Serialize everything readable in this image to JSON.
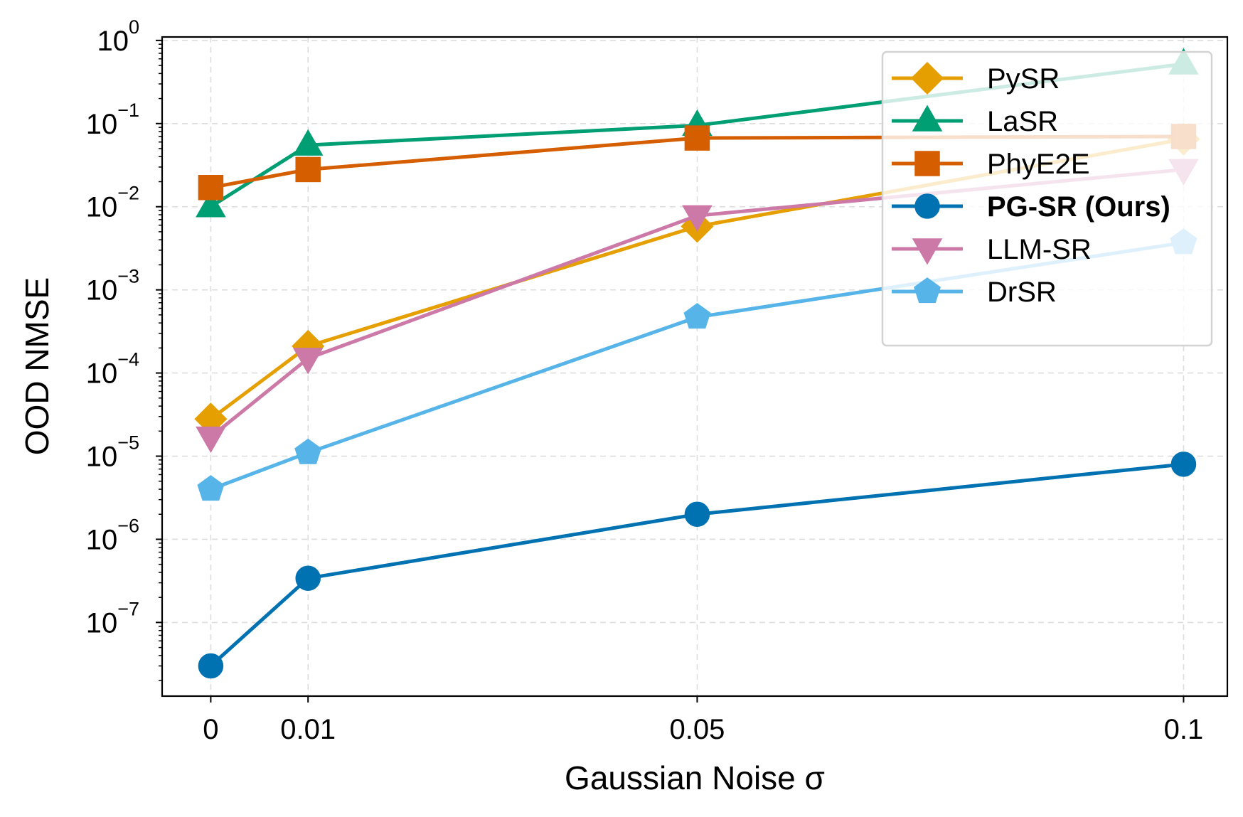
{
  "chart_data": {
    "type": "line",
    "title": "",
    "xlabel": "Gaussian Noise σ",
    "ylabel": "OOD NMSE",
    "yscale": "log",
    "ylim": [
      1.3e-08,
      1.1
    ],
    "grid": true,
    "legend_position": "top-right",
    "x": [
      0,
      0.01,
      0.05,
      0.1
    ],
    "x_tick_labels": [
      "0",
      "0.01",
      "0.05",
      "0.1"
    ],
    "y_tick_exponents": [
      -7,
      -6,
      -5,
      -4,
      -3,
      -2,
      -1,
      0
    ],
    "y_tick_base": "10",
    "series": [
      {
        "name": "PySR",
        "color": "#E69F00",
        "marker": "diamond",
        "bold": false,
        "values": [
          2.8e-05,
          0.00021,
          0.0058,
          0.065
        ]
      },
      {
        "name": "LaSR",
        "color": "#009E73",
        "marker": "triangle-up",
        "bold": false,
        "values": [
          0.01,
          0.055,
          0.095,
          0.52
        ]
      },
      {
        "name": "PhyE2E",
        "color": "#D55E00",
        "marker": "square",
        "bold": false,
        "values": [
          0.017,
          0.028,
          0.067,
          0.07
        ]
      },
      {
        "name": "PG-SR (Ours)",
        "color": "#0072B2",
        "marker": "circle",
        "bold": true,
        "values": [
          3e-08,
          3.4e-07,
          2e-06,
          8e-06
        ]
      },
      {
        "name": "LLM-SR",
        "color": "#CC79A7",
        "marker": "triangle-down",
        "bold": false,
        "values": [
          1.7e-05,
          0.00015,
          0.0078,
          0.028
        ]
      },
      {
        "name": "DrSR",
        "color": "#56B4E9",
        "marker": "pentagon",
        "bold": false,
        "values": [
          4e-06,
          1.1e-05,
          0.00047,
          0.0037
        ]
      }
    ]
  }
}
